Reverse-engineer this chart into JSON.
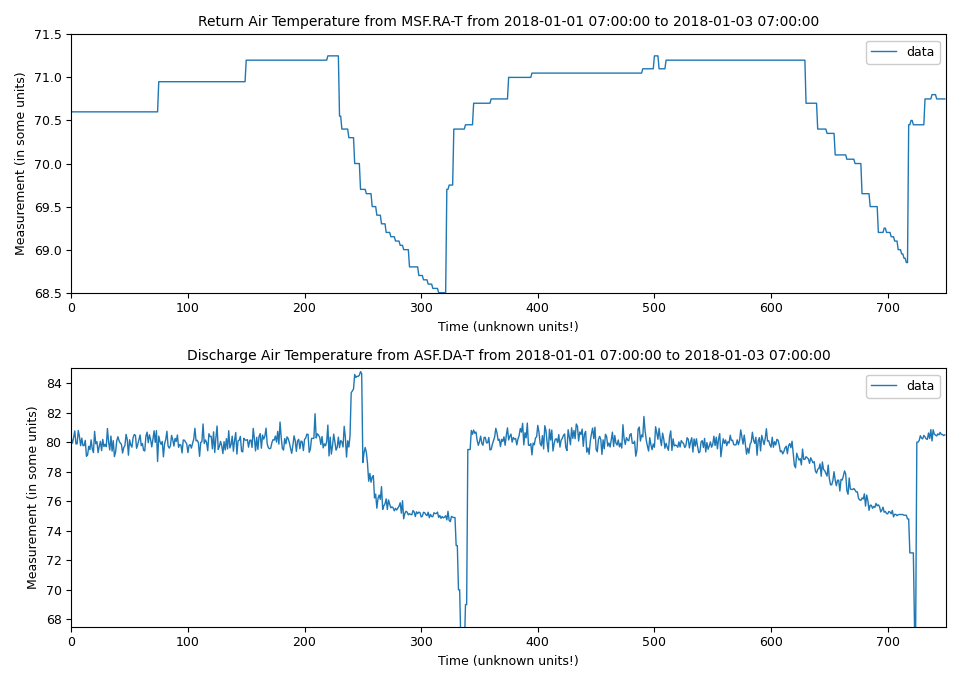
{
  "title1": "Return Air Temperature from MSF.RA-T from 2018-01-01 07:00:00 to 2018-01-03 07:00:00",
  "title2": "Discharge Air Temperature from ASF.DA-T from 2018-01-01 07:00:00 to 2018-01-03 07:00:00",
  "xlabel": "Time (unknown units!)",
  "ylabel": "Measurement (in some units)",
  "line_color": "#1f77b4",
  "line_width": 1.0,
  "legend_label": "data",
  "fig_width": 9.61,
  "fig_height": 6.83,
  "dpi": 100
}
